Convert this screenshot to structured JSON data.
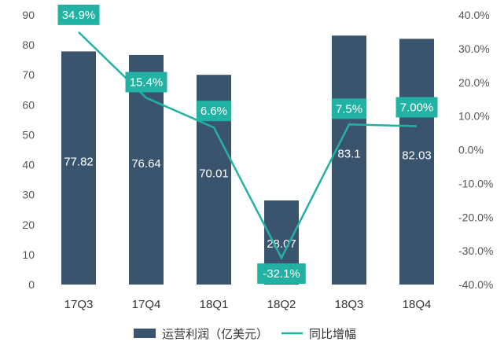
{
  "chart_data": {
    "type": "bar+line",
    "categories": [
      "17Q3",
      "17Q4",
      "18Q1",
      "18Q2",
      "18Q3",
      "18Q4"
    ],
    "bar_series": {
      "name": "运营利润（亿美元）",
      "values": [
        77.82,
        76.64,
        70.01,
        28.07,
        83.1,
        82.03
      ],
      "labels": [
        "77.82",
        "76.64",
        "70.01",
        "28.07",
        "83.1",
        "82.03"
      ],
      "color": "#3b546e"
    },
    "line_series": {
      "name": "同比增幅",
      "values": [
        34.9,
        15.4,
        6.6,
        -32.1,
        7.5,
        7.0
      ],
      "labels": [
        "34.9%",
        "15.4%",
        "6.6%",
        "-32.1%",
        "7.5%",
        "7.00%"
      ],
      "color": "#22b2a4"
    },
    "y_left": {
      "min": 0,
      "max": 90,
      "step": 10,
      "ticks": [
        "0",
        "10",
        "20",
        "30",
        "40",
        "50",
        "60",
        "70",
        "80",
        "90"
      ]
    },
    "y_right": {
      "min": -40,
      "max": 40,
      "step": 10,
      "ticks": [
        "-40.0%",
        "-30.0%",
        "-20.0%",
        "-10.0%",
        "0.0%",
        "10.0%",
        "20.0%",
        "30.0%",
        "40.0%"
      ]
    },
    "legend_position": "bottom",
    "grid": false,
    "text_color": "#555555"
  }
}
